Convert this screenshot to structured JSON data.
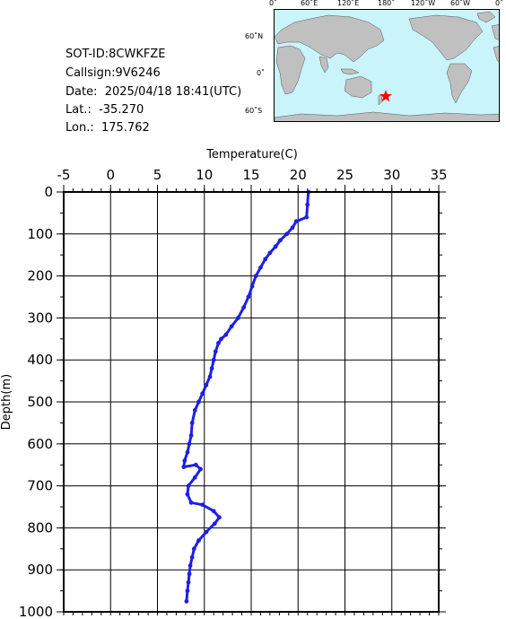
{
  "info": {
    "sot_id": "SOT-ID:8CWKFZE",
    "callsign": "Callsign:9V6246",
    "date": "Date:  2025/04/18 18:41(UTC)",
    "lat": "Lat.:  -35.270",
    "lon": "Lon.:  175.762"
  },
  "map": {
    "top_labels": [
      "0˚",
      "60˚E",
      "120˚E",
      "180˚",
      "120˚W",
      "60˚W",
      "0˚"
    ],
    "left_labels": [
      "60˚N",
      "0˚",
      "60˚S"
    ],
    "ocean_color": "#c8f4fa",
    "land_color": "#c0c0c0",
    "marker_color": "#ff0000",
    "marker_icon": "star-icon"
  },
  "chart_data": {
    "type": "line",
    "xlabel": "Temperature(C)",
    "ylabel": "Depth(m)",
    "xlim": [
      -5,
      35
    ],
    "ylim": [
      1000,
      0
    ],
    "x_ticks": [
      "-5",
      "0",
      "5",
      "10",
      "15",
      "20",
      "25",
      "30",
      "35"
    ],
    "y_ticks": [
      "0",
      "100",
      "200",
      "300",
      "400",
      "500",
      "600",
      "700",
      "800",
      "900",
      "1000"
    ],
    "grid": true,
    "line_color": "#1f1fe6",
    "series": [
      {
        "x": [
          21.1,
          21.0,
          20.9,
          19.8,
          19.4,
          18.8,
          18.1,
          17.6,
          17.0,
          16.5,
          16.0,
          15.5,
          15.1,
          14.7,
          14.2,
          13.6,
          12.9,
          12.3,
          11.8,
          11.5,
          11.2,
          11.0,
          10.8,
          10.6,
          10.2,
          9.8,
          9.4,
          9.0,
          8.7,
          8.6,
          8.4,
          8.2,
          7.9,
          7.8,
          9.1,
          9.6,
          9.0,
          8.3,
          8.2,
          8.6,
          9.8,
          11.0,
          11.6,
          11.1,
          10.2,
          9.4,
          8.9,
          8.7,
          8.5,
          8.4,
          8.3,
          8.2,
          8.1
        ],
        "y": [
          0,
          30,
          60,
          70,
          85,
          100,
          115,
          130,
          145,
          160,
          180,
          200,
          225,
          250,
          275,
          300,
          320,
          340,
          350,
          360,
          380,
          400,
          420,
          440,
          460,
          480,
          500,
          520,
          550,
          580,
          600,
          620,
          640,
          655,
          650,
          660,
          680,
          700,
          720,
          740,
          745,
          760,
          775,
          790,
          810,
          830,
          850,
          870,
          890,
          910,
          930,
          950,
          975
        ]
      }
    ]
  }
}
